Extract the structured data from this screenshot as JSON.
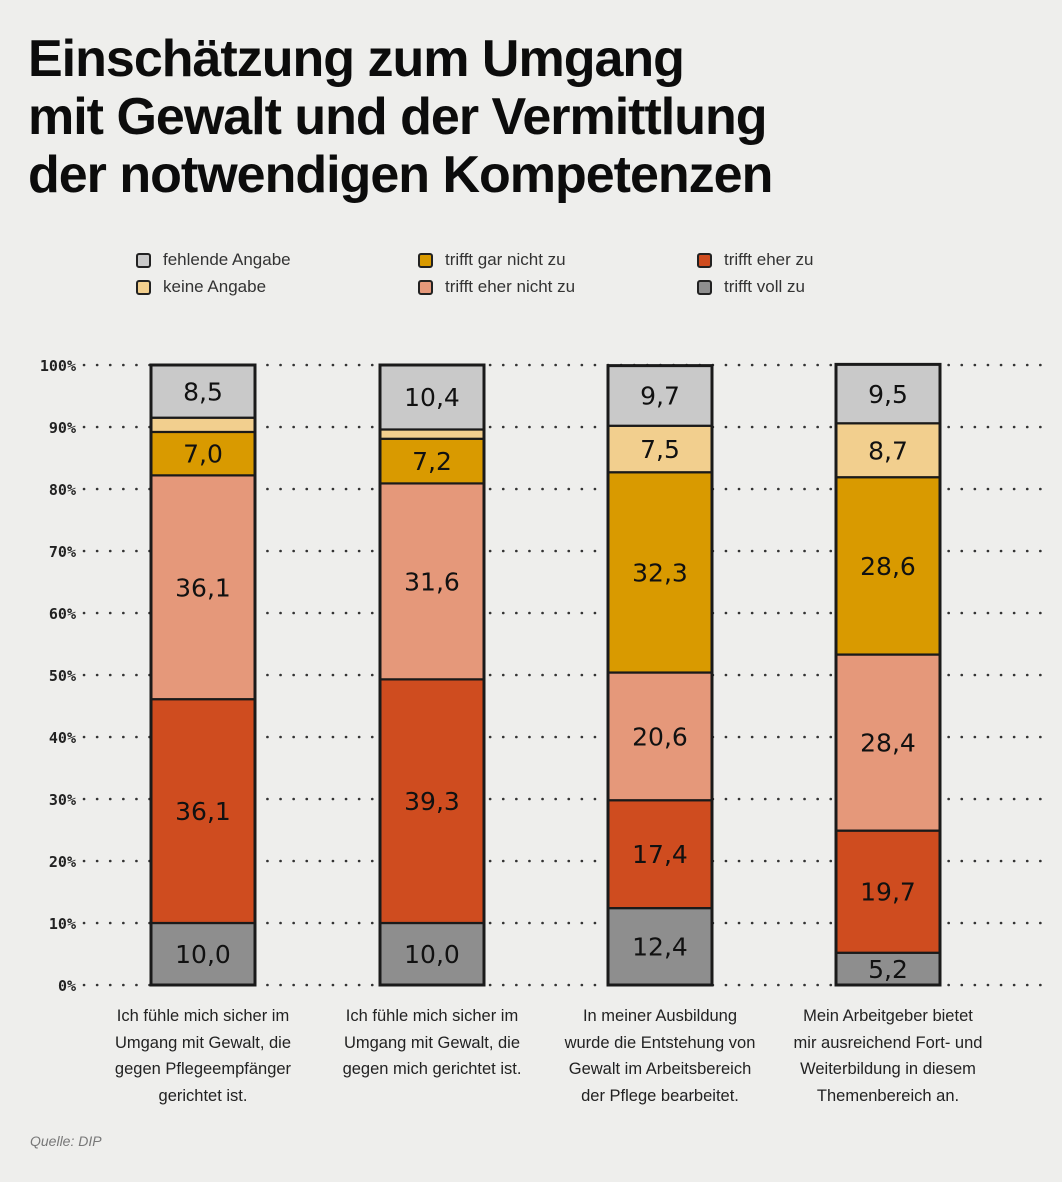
{
  "title_lines": [
    "Einschätzung zum Umgang",
    "mit Gewalt und der Vermittlung",
    "der notwendigen Kompetenzen"
  ],
  "legend": [
    {
      "label": "fehlende Angabe",
      "color": "#c9c9c9"
    },
    {
      "label": "keine Angabe",
      "color": "#f2cf8e"
    },
    {
      "label": "trifft gar nicht zu",
      "color": "#d99a00"
    },
    {
      "label": "trifft eher nicht zu",
      "color": "#e5987a"
    },
    {
      "label": "trifft eher zu",
      "color": "#cf4c1f"
    },
    {
      "label": "trifft voll zu",
      "color": "#8e8e8e"
    }
  ],
  "chart_data": {
    "type": "bar",
    "stacked": true,
    "ylim": [
      0,
      100
    ],
    "y_ticks": [
      "0%",
      "10%",
      "20%",
      "30%",
      "40%",
      "50%",
      "60%",
      "70%",
      "80%",
      "90%",
      "100%"
    ],
    "grid": "dotted",
    "legend_position": "top",
    "categories": [
      "Ich fühle mich sicher im Umgang mit Gewalt, die gegen Pflegeempfänger gerichtet ist.",
      "Ich fühle mich sicher im Umgang mit Gewalt, die gegen mich gerichtet ist.",
      "In meiner Ausbildung wurde die Entstehung von Gewalt im Arbeitsbereich der Pflege bearbeitet.",
      "Mein Arbeitgeber bietet mir ausreichend Fort- und Weiterbildung in diesem Themenbereich an."
    ],
    "series": [
      {
        "name": "trifft voll zu",
        "color": "#8e8e8e",
        "values": [
          10.0,
          10.0,
          12.4,
          5.2
        ],
        "labels": [
          "10,0",
          "10,0",
          "12,4",
          "5,2"
        ]
      },
      {
        "name": "trifft eher zu",
        "color": "#cf4c1f",
        "values": [
          36.1,
          39.3,
          17.4,
          19.7
        ],
        "labels": [
          "36,1",
          "39,3",
          "17,4",
          "19,7"
        ]
      },
      {
        "name": "trifft eher nicht zu",
        "color": "#e5987a",
        "values": [
          36.1,
          31.6,
          20.6,
          28.4
        ],
        "labels": [
          "36,1",
          "31,6",
          "20,6",
          "28,4"
        ]
      },
      {
        "name": "trifft gar nicht zu",
        "color": "#d99a00",
        "values": [
          7.0,
          7.2,
          32.3,
          28.6
        ],
        "labels": [
          "7,0",
          "7,2",
          "32,3",
          "28,6"
        ]
      },
      {
        "name": "keine Angabe",
        "color": "#f2cf8e",
        "values": [
          2.3,
          1.5,
          7.5,
          8.7
        ],
        "labels": [
          "",
          "",
          "7,5",
          "8,7"
        ]
      },
      {
        "name": "fehlende Angabe",
        "color": "#c9c9c9",
        "values": [
          8.5,
          10.4,
          9.7,
          9.5
        ],
        "labels": [
          "8,5",
          "10,4",
          "9,7",
          "9,5"
        ]
      }
    ]
  },
  "bar_label_lines": [
    [
      "Ich fühle mich sicher im",
      "Umgang mit Gewalt, die",
      "gegen Pflegeempfänger",
      "gerichtet ist."
    ],
    [
      "Ich fühle mich sicher im",
      "Umgang mit Gewalt, die",
      "gegen mich gerichtet ist."
    ],
    [
      "In meiner Ausbildung",
      "wurde die Entstehung von",
      "Gewalt im Arbeitsbereich",
      "der Pflege bearbeitet."
    ],
    [
      "Mein Arbeitgeber bietet",
      "mir ausreichend Fort- und",
      "Weiterbildung in diesem",
      "Themenbereich an."
    ]
  ],
  "source": "Quelle: DIP"
}
